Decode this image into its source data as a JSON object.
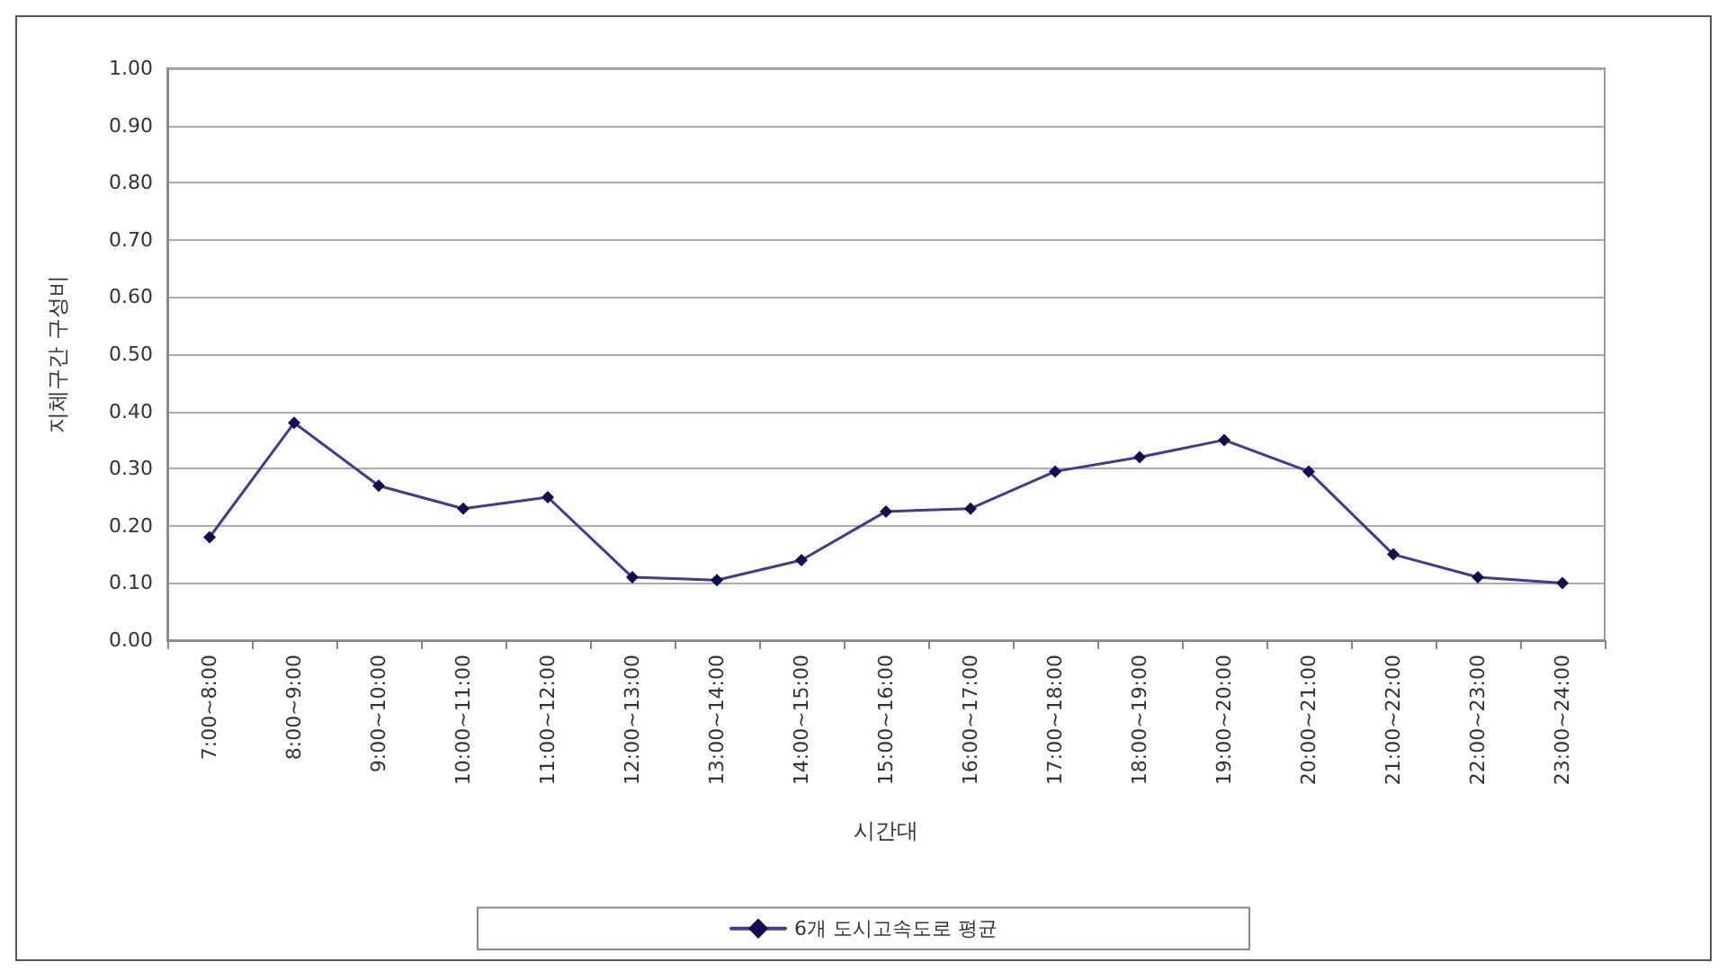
{
  "chart_data": {
    "type": "line",
    "xlabel": "시간대",
    "ylabel": "지체구간 구성비",
    "categories": [
      "7:00~8:00",
      "8:00~9:00",
      "9:00~10:00",
      "10:00~11:00",
      "11:00~12:00",
      "12:00~13:00",
      "13:00~14:00",
      "14:00~15:00",
      "15:00~16:00",
      "16:00~17:00",
      "17:00~18:00",
      "18:00~19:00",
      "19:00~20:00",
      "20:00~21:00",
      "21:00~22:00",
      "22:00~23:00",
      "23:00~24:00"
    ],
    "series": [
      {
        "name": "6개 도시고속도로 평균",
        "color": "#3c3c9a",
        "values": [
          0.18,
          0.38,
          0.27,
          0.23,
          0.25,
          0.11,
          0.105,
          0.14,
          0.225,
          0.23,
          0.295,
          0.32,
          0.35,
          0.295,
          0.15,
          0.11,
          0.1
        ]
      }
    ],
    "ylim": [
      0,
      1
    ],
    "yticks": [
      {
        "value": 0,
        "label": "0.00"
      },
      {
        "value": 0.1,
        "label": "0.10"
      },
      {
        "value": 0.2,
        "label": "0.20"
      },
      {
        "value": 0.3,
        "label": "0.30"
      },
      {
        "value": 0.4,
        "label": "0.40"
      },
      {
        "value": 0.5,
        "label": "0.50"
      },
      {
        "value": 0.6,
        "label": "0.60"
      },
      {
        "value": 0.7,
        "label": "0.70"
      },
      {
        "value": 0.8,
        "label": "0.80"
      },
      {
        "value": 0.9,
        "label": "0.90"
      },
      {
        "value": 1,
        "label": "1.00"
      }
    ],
    "grid": "y",
    "legend": "bottom",
    "marker": "diamond",
    "line_style": "solid"
  }
}
